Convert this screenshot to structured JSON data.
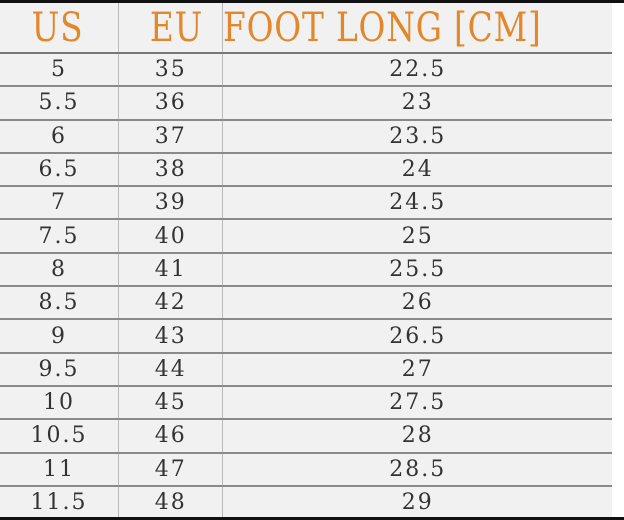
{
  "headers": [
    "US",
    "EU",
    "FOOT LONG [CM]"
  ],
  "rows": [
    [
      "5",
      "35",
      "22.5"
    ],
    [
      "5.5",
      "36",
      "23"
    ],
    [
      "6",
      "37",
      "23.5"
    ],
    [
      "6.5",
      "38",
      "24"
    ],
    [
      "7",
      "39",
      "24.5"
    ],
    [
      "7.5",
      "40",
      "25"
    ],
    [
      "8",
      "41",
      "25.5"
    ],
    [
      "8.5",
      "42",
      "26"
    ],
    [
      "9",
      "43",
      "26.5"
    ],
    [
      "9.5",
      "44",
      "27"
    ],
    [
      "10",
      "45",
      "27.5"
    ],
    [
      "10.5",
      "46",
      "28"
    ],
    [
      "11",
      "47",
      "28.5"
    ],
    [
      "11.5",
      "48",
      "29"
    ]
  ],
  "colors": {
    "header_text": "#e2882a",
    "body_text": "#333333",
    "background": "#f1f1f1"
  }
}
